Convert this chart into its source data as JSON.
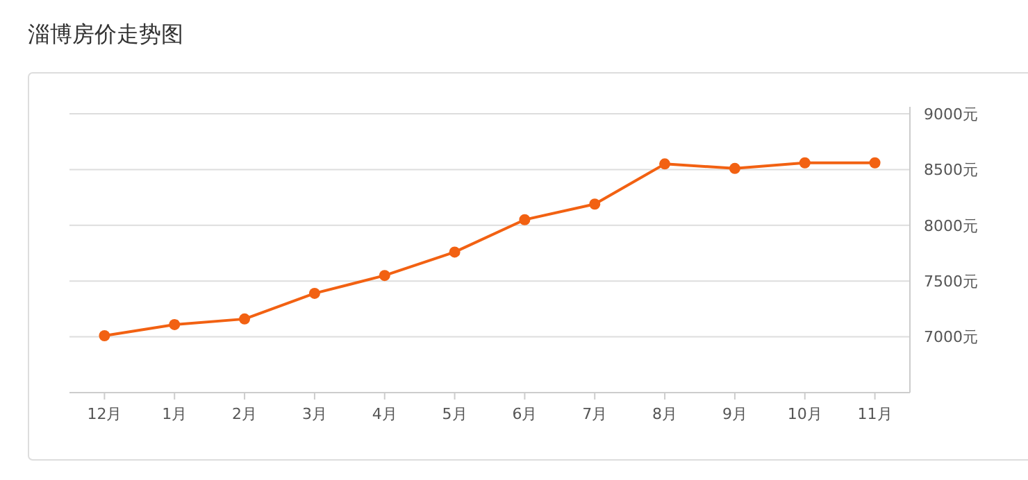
{
  "chart_data": {
    "type": "line",
    "title": "淄博房价走势图",
    "categories": [
      "12月",
      "1月",
      "2月",
      "3月",
      "4月",
      "5月",
      "6月",
      "7月",
      "8月",
      "9月",
      "10月",
      "11月"
    ],
    "series": [
      {
        "color": "#f26112",
        "values": [
          7010,
          7110,
          7160,
          7390,
          7550,
          7760,
          8050,
          8190,
          8550,
          8510,
          8560,
          8560
        ]
      }
    ],
    "ylim": [
      6500,
      9000
    ],
    "yticks": [
      {
        "value": 7000,
        "label": "7000元"
      },
      {
        "value": 7500,
        "label": "7500元"
      },
      {
        "value": 8000,
        "label": "8000元"
      },
      {
        "value": 8500,
        "label": "8500元"
      },
      {
        "value": 9000,
        "label": "9000元"
      }
    ],
    "grid": "y",
    "marker": "circle",
    "line_style": "solid"
  }
}
